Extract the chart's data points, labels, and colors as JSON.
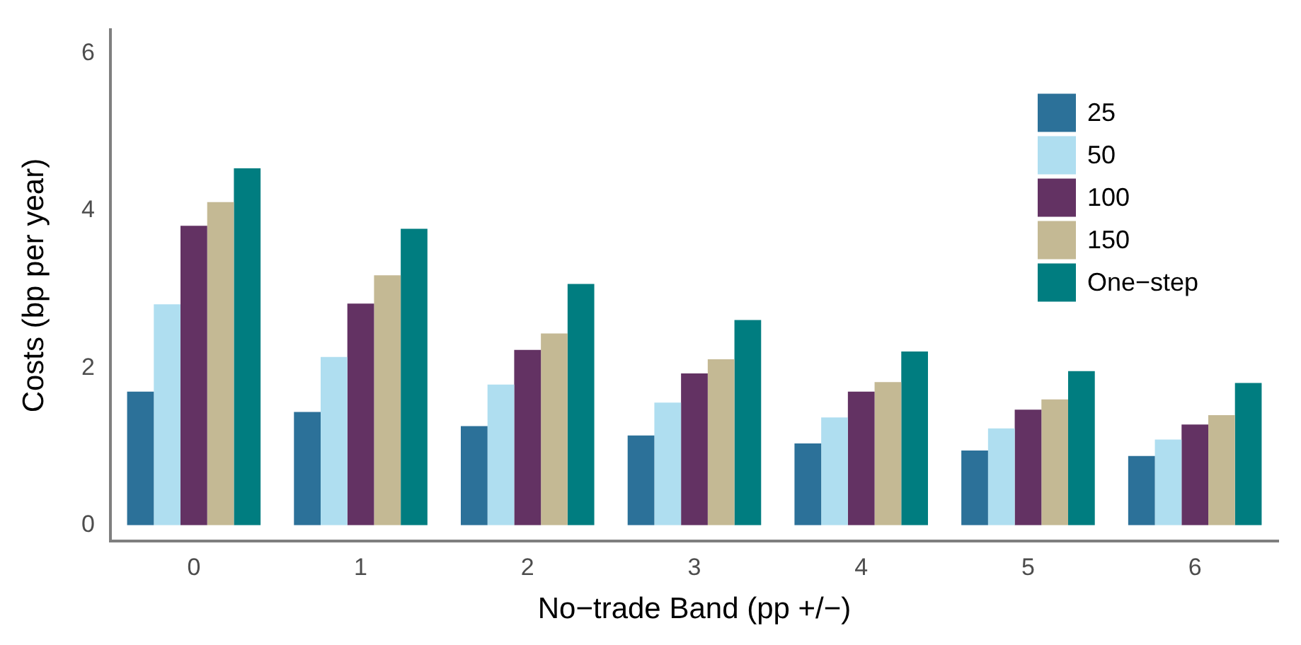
{
  "chart_data": {
    "type": "bar",
    "xlabel": "No−trade Band (pp +/−)",
    "ylabel": "Costs (bp per year)",
    "categories": [
      "0",
      "1",
      "2",
      "3",
      "4",
      "5",
      "6"
    ],
    "series": [
      {
        "name": "25",
        "color": "#2c7199",
        "values": [
          1.7,
          1.44,
          1.26,
          1.14,
          1.04,
          0.95,
          0.88
        ]
      },
      {
        "name": "50",
        "color": "#afdef0",
        "values": [
          2.81,
          2.14,
          1.79,
          1.56,
          1.37,
          1.23,
          1.09
        ]
      },
      {
        "name": "100",
        "color": "#633263",
        "values": [
          3.81,
          2.82,
          2.23,
          1.93,
          1.7,
          1.47,
          1.28
        ]
      },
      {
        "name": "150",
        "color": "#c4b994",
        "values": [
          4.11,
          3.18,
          2.44,
          2.11,
          1.82,
          1.6,
          1.4
        ]
      },
      {
        "name": "One−step",
        "color": "#007d80",
        "values": [
          4.54,
          3.77,
          3.07,
          2.61,
          2.21,
          1.96,
          1.81
        ]
      }
    ],
    "ylim": [
      -0.2,
      6.3
    ],
    "yticks": [
      0,
      2,
      4,
      6
    ],
    "grid": false,
    "legend": "top right"
  }
}
